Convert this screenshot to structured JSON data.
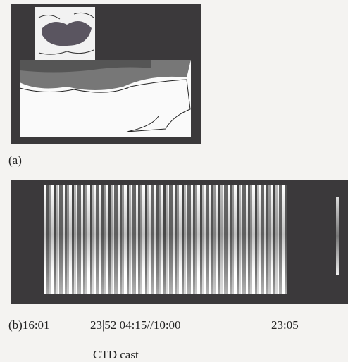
{
  "panel_a": {
    "label": "(a)"
  },
  "panel_b": {
    "time_labels": [
      "(b)16:01",
      "23|52 04:15//10:00",
      "23:05"
    ],
    "caption": "CTD cast"
  }
}
